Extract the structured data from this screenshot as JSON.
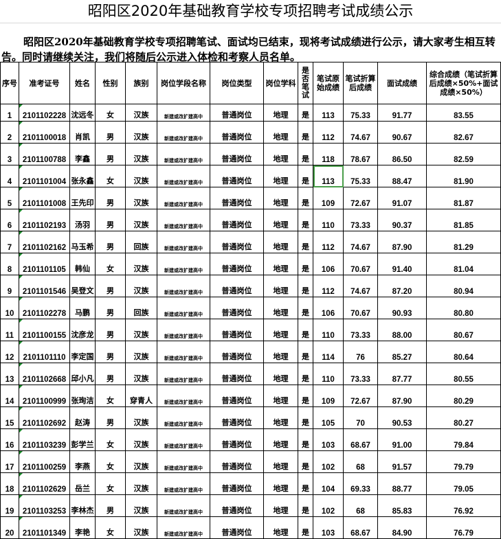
{
  "title": "昭阳区2020年基础教育学校专项招聘考试成绩公示",
  "notice": "昭阳区2020年基础教育学校专项招聘笔试、面试均已结束，现将考试成绩进行公示，请大家考生相互转告。同时请继续关注，我们将随后公示进入体检和考察人员名单。",
  "headers": [
    "序号",
    "准考证号",
    "姓名",
    "性别",
    "族别",
    "岗位学段名称",
    "岗位类型",
    "岗位学科",
    "是否笔试",
    "笔试原始成绩",
    "笔试折算后成绩",
    "面试成绩",
    "综合成绩（笔试折算后成绩×50%+面试成绩×50%）"
  ],
  "selected_cell": {
    "row": 4,
    "column": "笔试原始成绩"
  },
  "rows": [
    [
      "1",
      "2101102228",
      "沈远冬",
      "女",
      "汉族",
      "新建或改扩建高中",
      "普通岗位",
      "地理",
      "是",
      "113",
      "75.33",
      "91.77",
      "83.55"
    ],
    [
      "2",
      "2101100018",
      "肖凯",
      "男",
      "汉族",
      "新建或改扩建高中",
      "普通岗位",
      "地理",
      "是",
      "112",
      "74.67",
      "90.67",
      "82.67"
    ],
    [
      "3",
      "2101100788",
      "李鑫",
      "男",
      "汉族",
      "新建或改扩建高中",
      "普通岗位",
      "地理",
      "是",
      "118",
      "78.67",
      "86.50",
      "82.59"
    ],
    [
      "4",
      "2101101004",
      "张永鑫",
      "女",
      "汉族",
      "新建或改扩建高中",
      "普通岗位",
      "地理",
      "是",
      "113",
      "75.33",
      "88.47",
      "81.90"
    ],
    [
      "5",
      "2101101008",
      "王先印",
      "男",
      "汉族",
      "新建或改扩建高中",
      "普通岗位",
      "地理",
      "是",
      "109",
      "72.67",
      "91.07",
      "81.87"
    ],
    [
      "6",
      "2101102193",
      "汤羽",
      "男",
      "汉族",
      "新建或改扩建高中",
      "普通岗位",
      "地理",
      "是",
      "110",
      "73.33",
      "90.37",
      "81.85"
    ],
    [
      "7",
      "2101102162",
      "马玉希",
      "男",
      "回族",
      "新建或改扩建高中",
      "普通岗位",
      "地理",
      "是",
      "112",
      "74.67",
      "87.90",
      "81.29"
    ],
    [
      "8",
      "2101101105",
      "韩仙",
      "女",
      "汉族",
      "新建或改扩建高中",
      "普通岗位",
      "地理",
      "是",
      "106",
      "70.67",
      "91.40",
      "81.04"
    ],
    [
      "9",
      "2101101546",
      "吴登文",
      "男",
      "汉族",
      "新建或改扩建高中",
      "普通岗位",
      "地理",
      "是",
      "112",
      "74.67",
      "87.20",
      "80.94"
    ],
    [
      "10",
      "2101102278",
      "马鹏",
      "男",
      "回族",
      "新建或改扩建高中",
      "普通岗位",
      "地理",
      "是",
      "106",
      "70.67",
      "90.93",
      "80.80"
    ],
    [
      "11",
      "2101100155",
      "沈彦龙",
      "男",
      "汉族",
      "新建或改扩建高中",
      "普通岗位",
      "地理",
      "是",
      "110",
      "73.33",
      "88.00",
      "80.67"
    ],
    [
      "12",
      "2101101110",
      "李定国",
      "男",
      "汉族",
      "新建或改扩建高中",
      "普通岗位",
      "地理",
      "是",
      "114",
      "76",
      "85.27",
      "80.64"
    ],
    [
      "13",
      "2101102668",
      "邱小凡",
      "男",
      "汉族",
      "新建或改扩建高中",
      "普通岗位",
      "地理",
      "是",
      "110",
      "73.33",
      "87.77",
      "80.55"
    ],
    [
      "14",
      "2101100999",
      "张珣洁",
      "女",
      "穿青人",
      "新建或改扩建高中",
      "普通岗位",
      "地理",
      "是",
      "109",
      "72.67",
      "87.90",
      "80.29"
    ],
    [
      "15",
      "2101102692",
      "赵涛",
      "男",
      "汉族",
      "新建或改扩建高中",
      "普通岗位",
      "地理",
      "是",
      "105",
      "70",
      "90.53",
      "80.27"
    ],
    [
      "16",
      "2101103239",
      "彭学兰",
      "女",
      "汉族",
      "新建或改扩建高中",
      "普通岗位",
      "地理",
      "是",
      "103",
      "68.67",
      "91.00",
      "79.84"
    ],
    [
      "17",
      "2101100259",
      "李燕",
      "女",
      "汉族",
      "新建或改扩建高中",
      "普通岗位",
      "地理",
      "是",
      "102",
      "68",
      "91.57",
      "79.79"
    ],
    [
      "18",
      "2101102629",
      "岳兰",
      "女",
      "汉族",
      "新建或改扩建高中",
      "普通岗位",
      "地理",
      "是",
      "104",
      "69.33",
      "88.77",
      "79.05"
    ],
    [
      "19",
      "2101103253",
      "李林杰",
      "男",
      "汉族",
      "新建或改扩建高中",
      "普通岗位",
      "地理",
      "是",
      "102",
      "68",
      "85.83",
      "76.92"
    ],
    [
      "20",
      "2101101349",
      "李艳",
      "女",
      "汉族",
      "新建或改扩建高中",
      "普通岗位",
      "地理",
      "是",
      "103",
      "68.67",
      "84.90",
      "76.79"
    ]
  ]
}
